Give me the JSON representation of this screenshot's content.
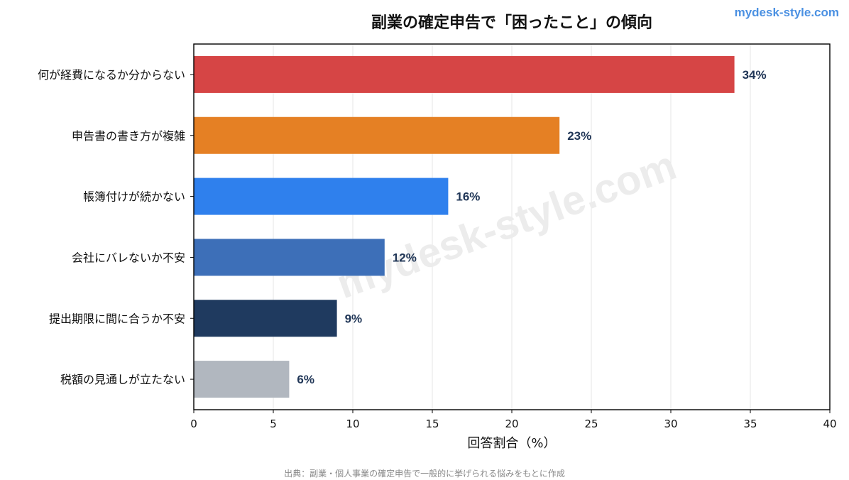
{
  "brand": "mydesk-style.com",
  "watermark": "mydesk-style.com",
  "footer": "出典：副業・個人事業の確定申告で一般的に挙げられる悩みをもとに作成",
  "colors": {
    "axis": "#000000",
    "grid": "#e6e6e6",
    "label_text": "#1f3556",
    "watermark": "#ececec"
  },
  "chart_data": {
    "type": "bar",
    "orientation": "horizontal",
    "title": "副業の確定申告で「困ったこと」の傾向",
    "xlabel": "回答割合（%）",
    "ylabel": "",
    "categories": [
      "何が経費になるか分からない",
      "申告書の書き方が複雑",
      "帳簿付けが続かない",
      "会社にバレないか不安",
      "提出期限に間に合うか不安",
      "税額の見通しが立たない"
    ],
    "values": [
      34,
      23,
      16,
      12,
      9,
      6
    ],
    "data_labels": [
      "34%",
      "23%",
      "16%",
      "12%",
      "9%",
      "6%"
    ],
    "bar_colors": [
      "#d64545",
      "#e58024",
      "#2f80ed",
      "#3d6fb8",
      "#1f3a5f",
      "#b1b7bf"
    ],
    "xlim": [
      0,
      40
    ],
    "xticks": [
      0,
      5,
      10,
      15,
      20,
      25,
      30,
      35,
      40
    ],
    "xtick_labels": [
      "0",
      "5",
      "10",
      "15",
      "20",
      "25",
      "30",
      "35",
      "40"
    ],
    "grid": "vertical",
    "legend": "none"
  }
}
